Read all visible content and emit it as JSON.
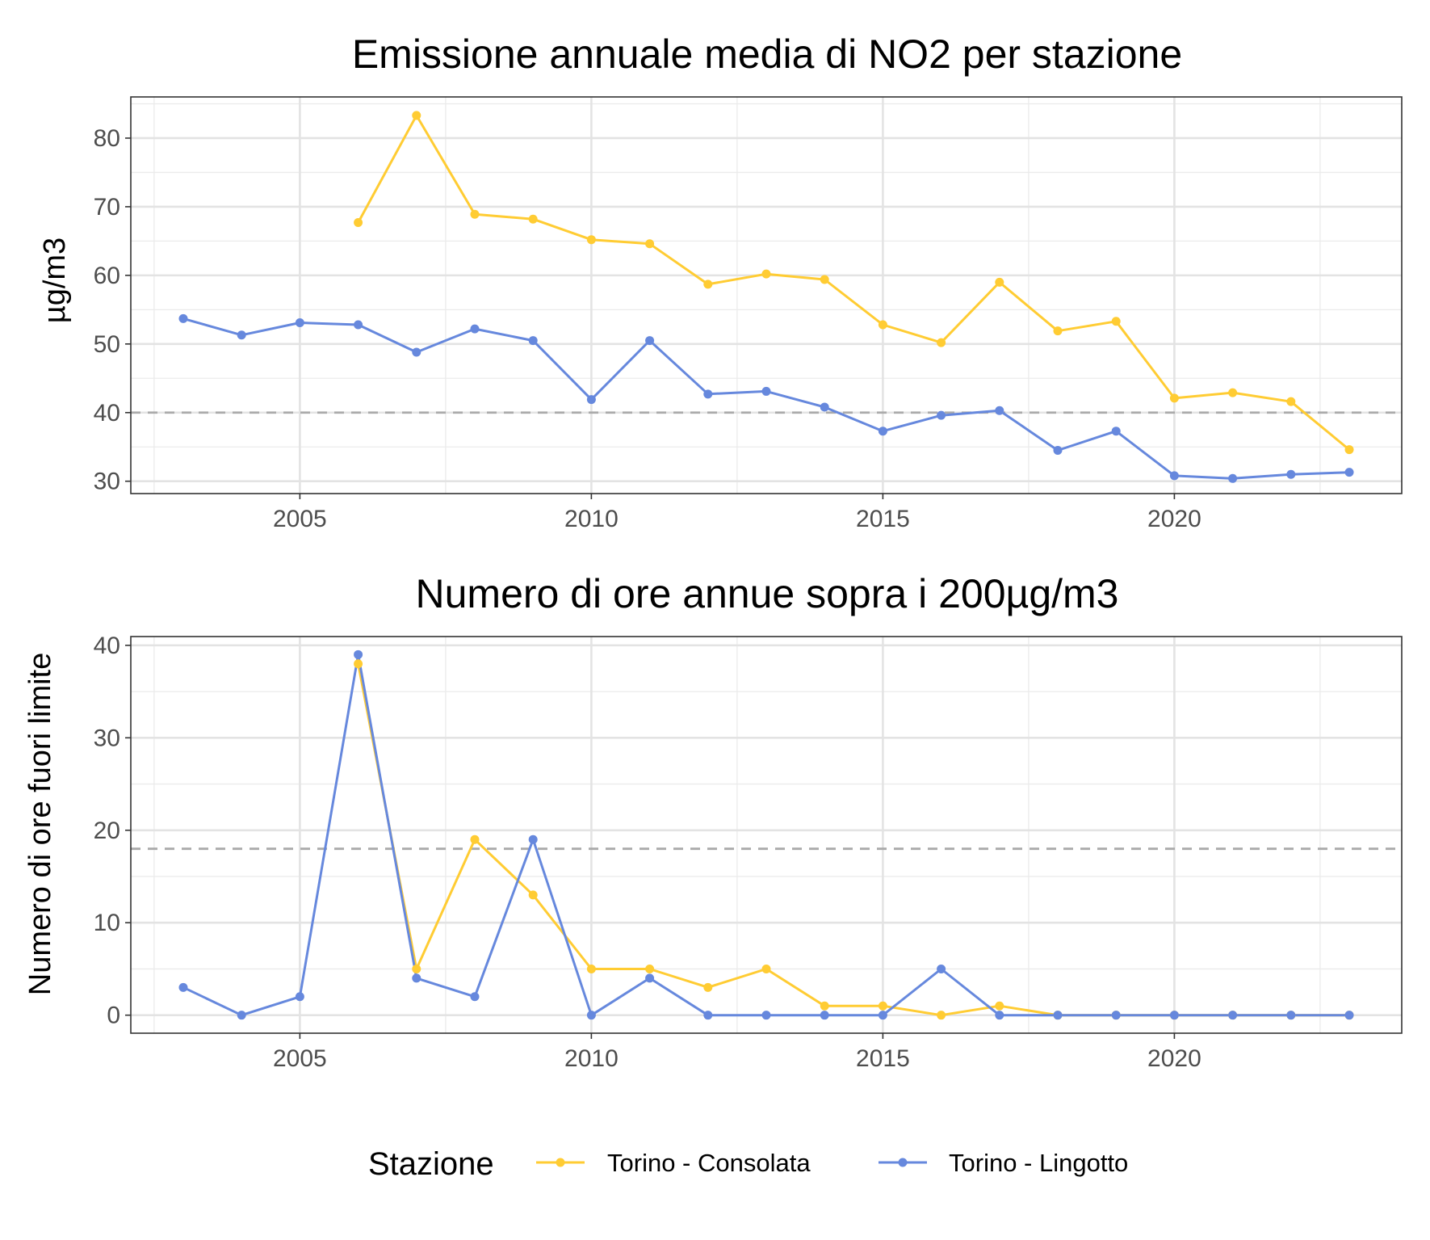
{
  "legend": {
    "title": "Stazione",
    "placement": "bottom",
    "items": [
      {
        "label": "Torino - Consolata",
        "color": "#FFCC33"
      },
      {
        "label": "Torino - Lingotto",
        "color": "#6688DD"
      }
    ]
  },
  "chart_data": [
    {
      "type": "line",
      "title": "Emissione annuale media di NO2 per stazione",
      "xlabel": "",
      "ylabel": "µg/m3",
      "xlim": [
        2002.1,
        2023.9
      ],
      "ylim": [
        28.2,
        86.0
      ],
      "xticks": [
        2005,
        2010,
        2015,
        2020
      ],
      "yticks": [
        30,
        40,
        50,
        60,
        70,
        80
      ],
      "grid": true,
      "reference_line": {
        "y": 40,
        "style": "dashed",
        "color": "#AAAAAA"
      },
      "series": [
        {
          "name": "Torino - Consolata",
          "color": "#FFCC33",
          "x": [
            2006,
            2007,
            2008,
            2009,
            2010,
            2011,
            2012,
            2013,
            2014,
            2015,
            2016,
            2017,
            2018,
            2019,
            2020,
            2021,
            2022,
            2023
          ],
          "values": [
            67.7,
            83.3,
            68.9,
            68.2,
            65.2,
            64.6,
            58.7,
            60.2,
            59.4,
            52.8,
            50.2,
            59.0,
            51.9,
            53.3,
            42.1,
            42.9,
            41.6,
            34.6
          ]
        },
        {
          "name": "Torino - Lingotto",
          "color": "#6688DD",
          "x": [
            2003,
            2004,
            2005,
            2006,
            2007,
            2008,
            2009,
            2010,
            2011,
            2012,
            2013,
            2014,
            2015,
            2016,
            2017,
            2018,
            2019,
            2020,
            2021,
            2022,
            2023
          ],
          "values": [
            53.7,
            51.3,
            53.1,
            52.8,
            48.8,
            52.2,
            50.5,
            41.9,
            50.5,
            42.7,
            43.1,
            40.8,
            37.3,
            39.6,
            40.3,
            34.5,
            37.3,
            30.8,
            30.4,
            31.0,
            31.3
          ]
        }
      ]
    },
    {
      "type": "line",
      "title": "Numero di ore annue sopra i 200µg/m3",
      "xlabel": "",
      "ylabel": "Numero di ore fuori limite",
      "xlim": [
        2002.1,
        2023.9
      ],
      "ylim": [
        -1.95,
        40.95
      ],
      "xticks": [
        2005,
        2010,
        2015,
        2020
      ],
      "yticks": [
        0,
        10,
        20,
        30,
        40
      ],
      "grid": true,
      "reference_line": {
        "y": 18,
        "style": "dashed",
        "color": "#AAAAAA"
      },
      "series": [
        {
          "name": "Torino - Consolata",
          "color": "#FFCC33",
          "x": [
            2006,
            2007,
            2008,
            2009,
            2010,
            2011,
            2012,
            2013,
            2014,
            2015,
            2016,
            2017,
            2018,
            2019,
            2020,
            2021,
            2022,
            2023
          ],
          "values": [
            38,
            5,
            19,
            13,
            5,
            5,
            3,
            5,
            1,
            1,
            0,
            1,
            0,
            0,
            0,
            0,
            0,
            0
          ]
        },
        {
          "name": "Torino - Lingotto",
          "color": "#6688DD",
          "x": [
            2003,
            2004,
            2005,
            2006,
            2007,
            2008,
            2009,
            2010,
            2011,
            2012,
            2013,
            2014,
            2015,
            2016,
            2017,
            2018,
            2019,
            2020,
            2021,
            2022,
            2023
          ],
          "values": [
            3,
            0,
            2,
            39,
            4,
            2,
            19,
            0,
            4,
            0,
            0,
            0,
            0,
            5,
            0,
            0,
            0,
            0,
            0,
            0,
            0
          ]
        }
      ]
    }
  ]
}
